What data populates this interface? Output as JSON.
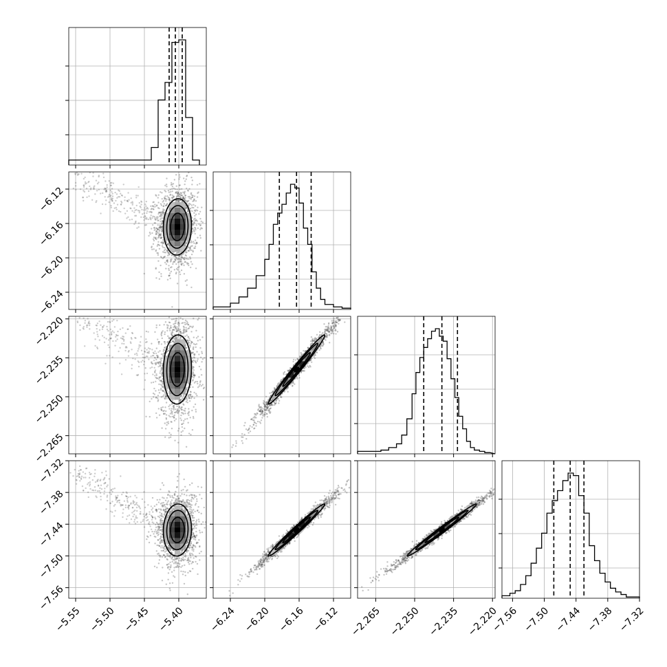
{
  "chart_data": {
    "type": "scatter",
    "title": "",
    "grid": true,
    "parameters": [
      {
        "ticks": [
          -5.55,
          -5.5,
          -5.45,
          -5.4
        ],
        "tick_labels": [
          "−5.55",
          "−5.50",
          "−5.45",
          "−5.40"
        ],
        "range": [
          -5.56,
          -5.36
        ],
        "quantiles": [
          -5.414,
          -5.405,
          -5.395
        ],
        "hist_edges": [
          -5.56,
          -5.44,
          -5.43,
          -5.42,
          -5.41,
          -5.4,
          -5.39,
          -5.38,
          -5.37
        ],
        "hist_counts": [
          0.04,
          0.14,
          0.52,
          0.66,
          0.98,
          1.0,
          0.38,
          0.04
        ]
      },
      {
        "ticks": [
          -6.24,
          -6.2,
          -6.16,
          -6.12
        ],
        "tick_labels": [
          "−6.24",
          "−6.20",
          "−6.16",
          "−6.12"
        ],
        "range": [
          -6.26,
          -6.1
        ],
        "quantiles": [
          -6.183,
          -6.163,
          -6.146
        ],
        "hist_edges": [
          -6.26,
          -6.24,
          -6.23,
          -6.22,
          -6.21,
          -6.2,
          -6.195,
          -6.19,
          -6.185,
          -6.18,
          -6.175,
          -6.17,
          -6.165,
          -6.16,
          -6.155,
          -6.15,
          -6.145,
          -6.14,
          -6.135,
          -6.13,
          -6.12,
          -6.11,
          -6.1
        ],
        "hist_counts": [
          0.02,
          0.05,
          0.1,
          0.17,
          0.27,
          0.4,
          0.52,
          0.68,
          0.77,
          0.84,
          0.93,
          1.0,
          0.97,
          0.85,
          0.65,
          0.52,
          0.3,
          0.17,
          0.08,
          0.04,
          0.02,
          0.01
        ]
      },
      {
        "ticks": [
          -2.265,
          -2.25,
          -2.235,
          -2.22
        ],
        "tick_labels": [
          "−2.265",
          "−2.250",
          "−2.235",
          "−2.220"
        ],
        "range": [
          -2.272,
          -2.219
        ],
        "quantiles": [
          -2.2465,
          -2.2395,
          -2.2335
        ],
        "hist_edges": [
          -2.272,
          -2.263,
          -2.26,
          -2.257,
          -2.255,
          -2.253,
          -2.251,
          -2.2495,
          -2.248,
          -2.2465,
          -2.245,
          -2.2435,
          -2.242,
          -2.2405,
          -2.239,
          -2.2375,
          -2.236,
          -2.2345,
          -2.233,
          -2.2315,
          -2.23,
          -2.2285,
          -2.227,
          -2.225,
          -2.223,
          -2.221,
          -2.219
        ],
        "hist_counts": [
          0.02,
          0.03,
          0.05,
          0.08,
          0.15,
          0.28,
          0.48,
          0.65,
          0.77,
          0.85,
          0.92,
          0.98,
          1.0,
          0.94,
          0.9,
          0.76,
          0.6,
          0.45,
          0.3,
          0.2,
          0.1,
          0.05,
          0.03,
          0.02,
          0.01
        ]
      },
      {
        "ticks": [
          -7.56,
          -7.5,
          -7.44,
          -7.38,
          -7.32
        ],
        "tick_labels": [
          "−7.56",
          "−7.50",
          "−7.44",
          "−7.38",
          "−7.32"
        ],
        "range": [
          -7.58,
          -7.32
        ],
        "quantiles": [
          -7.482,
          -7.451,
          -7.425
        ],
        "hist_edges": [
          -7.58,
          -7.565,
          -7.555,
          -7.545,
          -7.535,
          -7.525,
          -7.515,
          -7.505,
          -7.495,
          -7.485,
          -7.475,
          -7.465,
          -7.455,
          -7.445,
          -7.435,
          -7.425,
          -7.415,
          -7.405,
          -7.395,
          -7.385,
          -7.375,
          -7.365,
          -7.355,
          -7.345,
          -7.32
        ],
        "hist_counts": [
          0.02,
          0.04,
          0.06,
          0.11,
          0.18,
          0.28,
          0.4,
          0.52,
          0.68,
          0.78,
          0.86,
          0.94,
          1.0,
          0.98,
          0.82,
          0.68,
          0.42,
          0.3,
          0.2,
          0.13,
          0.08,
          0.05,
          0.03,
          0.01
        ]
      }
    ],
    "pairs": [
      {
        "x": 0,
        "y": 1,
        "center": [
          -5.402,
          -6.164
        ],
        "sigma": [
          0.01,
          0.016
        ],
        "rho": 0.05,
        "tail": true
      },
      {
        "x": 0,
        "y": 2,
        "center": [
          -5.402,
          -2.2395
        ],
        "sigma": [
          0.01,
          0.0065
        ],
        "rho": 0.05,
        "tail": true
      },
      {
        "x": 1,
        "y": 2,
        "center": [
          -6.163,
          -2.2395
        ],
        "sigma": [
          0.016,
          0.0065
        ],
        "rho": 0.985,
        "tail": false
      },
      {
        "x": 0,
        "y": 3,
        "center": [
          -5.402,
          -7.451
        ],
        "sigma": [
          0.01,
          0.024
        ],
        "rho": 0.05,
        "tail": true
      },
      {
        "x": 1,
        "y": 3,
        "center": [
          -6.163,
          -7.451
        ],
        "sigma": [
          0.016,
          0.024
        ],
        "rho": 0.985,
        "tail": false
      },
      {
        "x": 2,
        "y": 3,
        "center": [
          -2.2395,
          -7.451
        ],
        "sigma": [
          0.0065,
          0.024
        ],
        "rho": 0.99,
        "tail": false
      }
    ]
  }
}
